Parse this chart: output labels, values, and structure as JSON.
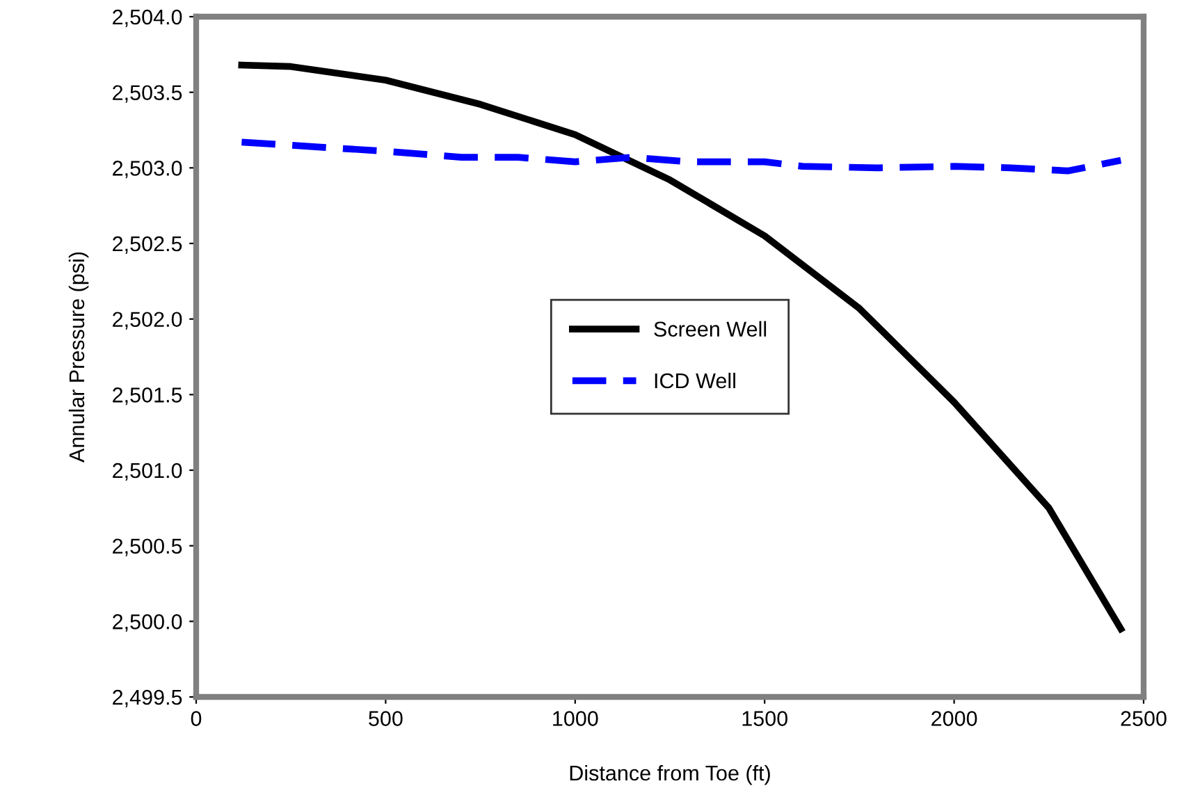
{
  "chart_data": {
    "type": "line",
    "xlabel": "Distance from Toe (ft)",
    "ylabel": "Annular Pressure (psi)",
    "xlim": [
      0,
      2500
    ],
    "xticks": [
      0,
      500,
      1000,
      1500,
      2000,
      2500
    ],
    "ylim": [
      2499.5,
      2504.0
    ],
    "yticks": [
      {
        "value": 2499.5,
        "label": "2,499.5"
      },
      {
        "value": 2500.0,
        "label": "2,500.0"
      },
      {
        "value": 2500.5,
        "label": "2,500.5"
      },
      {
        "value": 2501.0,
        "label": "2,501.0"
      },
      {
        "value": 2501.5,
        "label": "2,501.5"
      },
      {
        "value": 2502.0,
        "label": "2,502.0"
      },
      {
        "value": 2502.5,
        "label": "2,502.5"
      },
      {
        "value": 2503.0,
        "label": "2,503.0"
      },
      {
        "value": 2503.5,
        "label": "2,503.5"
      },
      {
        "value": 2504.0,
        "label": "2,504.0"
      }
    ],
    "grid": false,
    "legend": "center",
    "marker": "none",
    "series": [
      {
        "name": "Screen Well",
        "color": "#000000",
        "line_style": "solid",
        "x": [
          120,
          250,
          500,
          750,
          1000,
          1250,
          1500,
          1750,
          2000,
          2250,
          2440
        ],
        "values": [
          2503.68,
          2503.67,
          2503.58,
          2503.42,
          2503.22,
          2502.92,
          2502.55,
          2502.07,
          2501.45,
          2500.75,
          2499.95
        ]
      },
      {
        "name": "ICD Well",
        "color": "#0000ff",
        "line_style": "dashed",
        "x": [
          120,
          500,
          700,
          850,
          1000,
          1150,
          1300,
          1500,
          1600,
          1800,
          2000,
          2150,
          2300,
          2440
        ],
        "values": [
          2503.17,
          2503.11,
          2503.07,
          2503.07,
          2503.04,
          2503.07,
          2503.04,
          2503.04,
          2503.01,
          2503.0,
          2503.01,
          2503.0,
          2502.98,
          2503.05
        ]
      }
    ]
  }
}
